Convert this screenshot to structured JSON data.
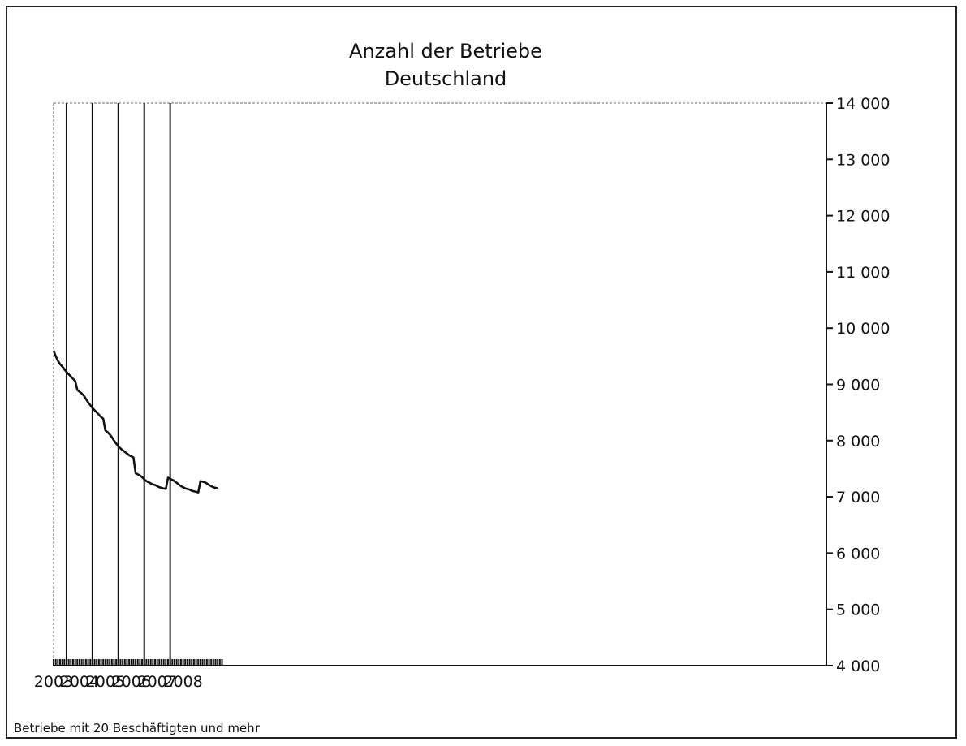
{
  "chart_data": {
    "type": "line",
    "title": "Anzahl der Betriebe",
    "subtitle": "Deutschland",
    "footnote": "Betriebe mit 20 Beschäftigten und mehr",
    "y_axis_position": "right",
    "ylim": [
      4000,
      14000
    ],
    "y_ticks": [
      {
        "value": 4000,
        "label": "4 000"
      },
      {
        "value": 5000,
        "label": "5 000"
      },
      {
        "value": 6000,
        "label": "6 000"
      },
      {
        "value": 7000,
        "label": "7 000"
      },
      {
        "value": 8000,
        "label": "8 000"
      },
      {
        "value": 9000,
        "label": "9 000"
      },
      {
        "value": 10000,
        "label": "10 000"
      },
      {
        "value": 11000,
        "label": "11 000"
      },
      {
        "value": 12000,
        "label": "12 000"
      },
      {
        "value": 13000,
        "label": "13 000"
      },
      {
        "value": 14000,
        "label": "14 000"
      }
    ],
    "x_ticks": [
      "2003",
      "2004",
      "2005",
      "2006",
      "2007",
      "2008"
    ],
    "series": [
      {
        "values": [
          9600,
          9500,
          9420,
          9360,
          9320,
          9270,
          9220,
          9180,
          9140,
          9100,
          9060,
          8900,
          8870,
          8840,
          8800,
          8740,
          8680,
          8630,
          8580,
          8540,
          8500,
          8460,
          8420,
          8390,
          8180,
          8150,
          8110,
          8060,
          8000,
          7950,
          7900,
          7860,
          7830,
          7800,
          7770,
          7740,
          7720,
          7700,
          7420,
          7400,
          7380,
          7350,
          7310,
          7280,
          7260,
          7240,
          7220,
          7210,
          7190,
          7170,
          7160,
          7150,
          7140,
          7340,
          7320,
          7300,
          7280,
          7250,
          7220,
          7190,
          7170,
          7150,
          7140,
          7130,
          7110,
          7100,
          7090,
          7080,
          7280,
          7270,
          7260,
          7240,
          7210,
          7190,
          7170,
          7160,
          7150
        ]
      }
    ]
  }
}
